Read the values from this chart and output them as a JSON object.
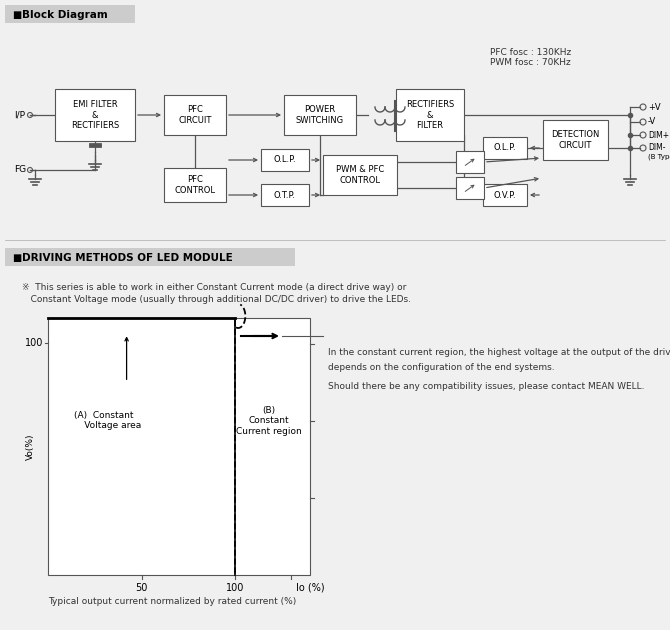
{
  "bg_color": "#f0f0f0",
  "title1": "Block Diagram",
  "title2": "DRIVING METHODS OF LED MODULE",
  "pfc_text": "PFC fosc : 130KHz\nPWM fosc : 70KHz",
  "series_note_line1": "※  This series is able to work in either Constant Current mode (a direct drive way) or",
  "series_note_line2": "   Constant Voltage mode (usually through additional DC/DC driver) to drive the LEDs.",
  "note_line1": "In the constant current region, the highest voltage at the output of the driver",
  "note_line2": "depends on the configuration of the end systems.",
  "note_line3": "Should there be any compatibility issues, please contact MEAN WELL.",
  "caption": "Typical output current normalized by rated current (%)"
}
